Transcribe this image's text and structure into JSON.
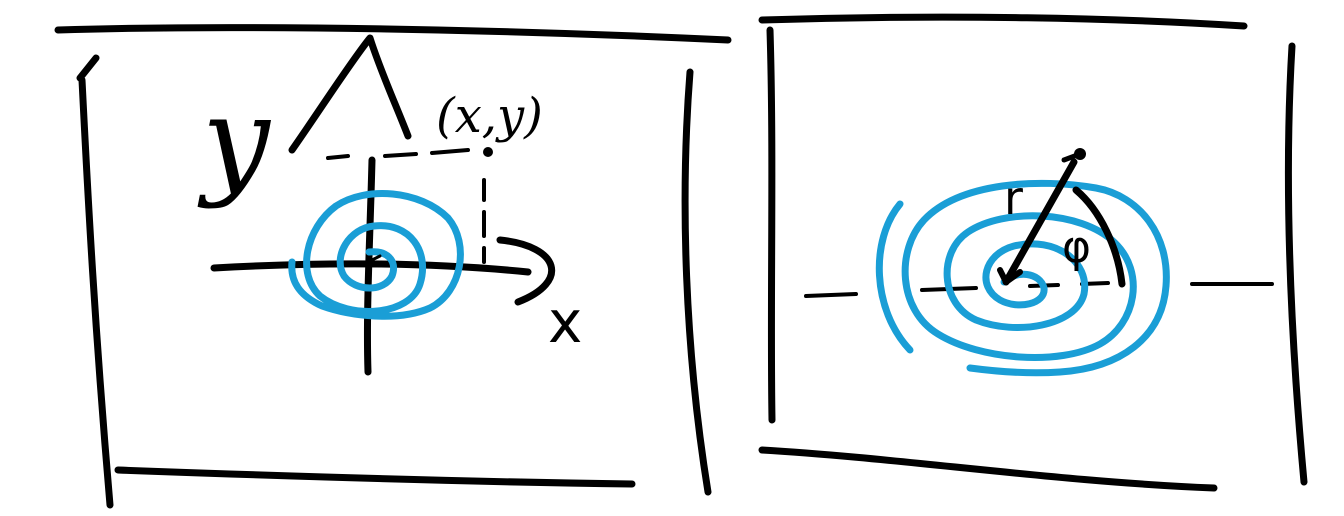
{
  "colors": {
    "ink": "#000000",
    "spiral": "#1a9ed6",
    "background": "#ffffff"
  },
  "panels": [
    {
      "name": "cartesian-panel",
      "labels": {
        "y_axis": "y",
        "x_axis": "x",
        "point": "(x,y)"
      }
    },
    {
      "name": "polar-panel",
      "labels": {
        "radius": "r",
        "angle": "φ"
      }
    }
  ]
}
